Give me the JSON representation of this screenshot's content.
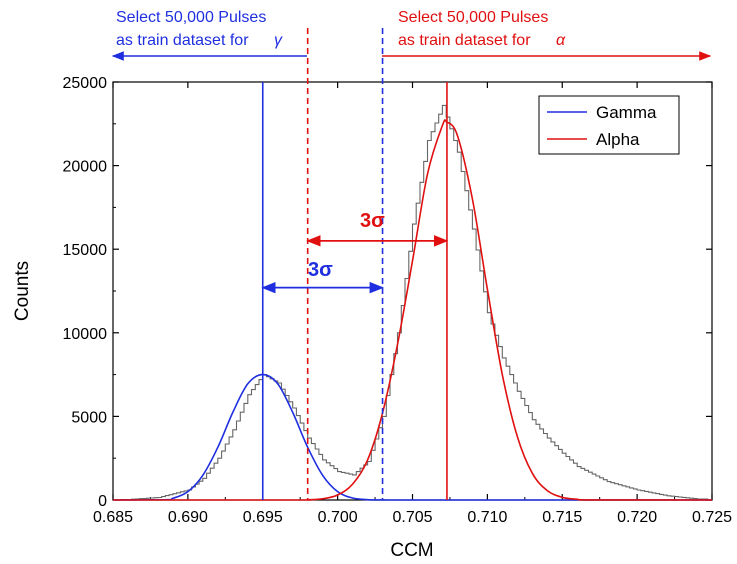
{
  "chart_data": {
    "type": "line",
    "title": "",
    "xlabel": "CCM",
    "ylabel": "Counts",
    "xlim": [
      0.685,
      0.725
    ],
    "ylim": [
      0,
      25000
    ],
    "x_ticks": [
      "0.685",
      "0.690",
      "0.695",
      "0.700",
      "0.705",
      "0.710",
      "0.715",
      "0.720",
      "0.725"
    ],
    "y_ticks": [
      "0",
      "5000",
      "10000",
      "15000",
      "20000",
      "25000"
    ],
    "grid": false,
    "legend_position": "top-right",
    "histogram": {
      "color": "#666666",
      "x": [
        0.686,
        0.688,
        0.69,
        0.691,
        0.692,
        0.693,
        0.694,
        0.695,
        0.696,
        0.697,
        0.698,
        0.699,
        0.7,
        0.701,
        0.702,
        0.703,
        0.704,
        0.705,
        0.706,
        0.707,
        0.708,
        0.709,
        0.71,
        0.711,
        0.712,
        0.713,
        0.714,
        0.715,
        0.716,
        0.718,
        0.72,
        0.722,
        0.724
      ],
      "y": [
        30,
        150,
        600,
        1300,
        2500,
        4200,
        6300,
        7500,
        7000,
        5500,
        3700,
        2400,
        1700,
        1500,
        2300,
        5000,
        10000,
        16500,
        21500,
        23600,
        20800,
        16200,
        11200,
        8500,
        6500,
        4800,
        3700,
        2800,
        2000,
        1100,
        600,
        250,
        60
      ]
    },
    "series": [
      {
        "name": "Gamma",
        "color": "#1f2fe0",
        "x": [
          0.685,
          0.6885,
          0.689,
          0.69,
          0.691,
          0.692,
          0.693,
          0.694,
          0.695,
          0.696,
          0.697,
          0.698,
          0.699,
          0.7,
          0.701,
          0.702,
          0.703,
          0.704,
          0.705,
          0.725
        ],
        "y": [
          0,
          20,
          100,
          500,
          1480,
          3150,
          5240,
          6950,
          7500,
          6950,
          5240,
          3150,
          1480,
          500,
          120,
          20,
          5,
          0,
          0,
          0
        ]
      },
      {
        "name": "Alpha",
        "color": "#e01010",
        "x": [
          0.685,
          0.697,
          0.698,
          0.699,
          0.7,
          0.701,
          0.702,
          0.703,
          0.704,
          0.705,
          0.706,
          0.707,
          0.7073,
          0.708,
          0.709,
          0.71,
          0.711,
          0.712,
          0.713,
          0.714,
          0.715,
          0.716,
          0.717,
          0.725
        ],
        "y": [
          0,
          0,
          10,
          70,
          300,
          950,
          2400,
          5200,
          9300,
          14300,
          19500,
          22400,
          22600,
          21800,
          18000,
          12600,
          7500,
          3800,
          1600,
          560,
          160,
          40,
          5,
          0
        ]
      }
    ],
    "vertical_lines": [
      {
        "x": 0.695,
        "color": "#1f2fe0",
        "style": "solid"
      },
      {
        "x": 0.698,
        "color": "#e01010",
        "style": "dashed"
      },
      {
        "x": 0.703,
        "color": "#1f2fe0",
        "style": "dashed"
      },
      {
        "x": 0.7073,
        "color": "#e01010",
        "style": "solid"
      }
    ],
    "annotations": {
      "gamma_select_line1": "Select 50,000 Pulses",
      "gamma_select_line2": "as train dataset for",
      "gamma_symbol": "γ",
      "alpha_select_line1": "Select 50,000 Pulses",
      "alpha_select_line2": "as train dataset for",
      "alpha_symbol": "α",
      "gamma_sigma": "3σ",
      "alpha_sigma": "3σ"
    },
    "sigma_arrows": [
      {
        "from": 0.695,
        "to": 0.703,
        "y": 12700,
        "color": "#1f2fe0"
      },
      {
        "from": 0.698,
        "to": 0.7073,
        "y": 15500,
        "color": "#e01010"
      }
    ]
  }
}
